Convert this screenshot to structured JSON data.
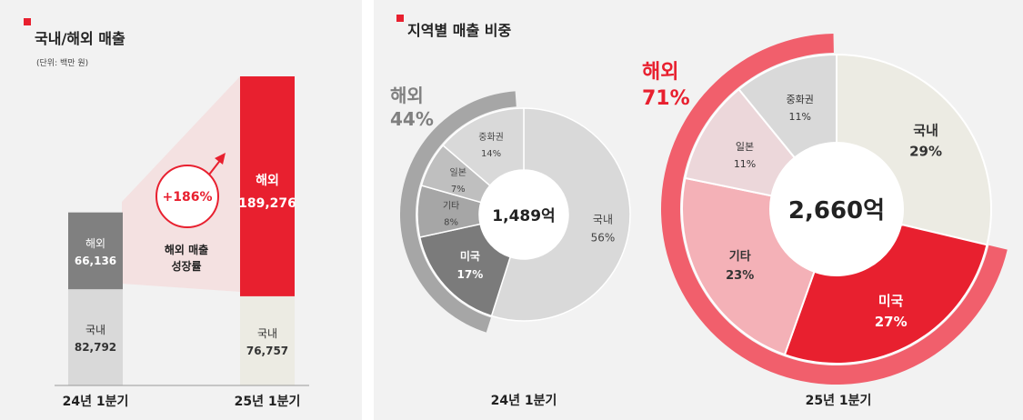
{
  "left_panel": {
    "title": "국내/해외 매출",
    "unit": "(단위: 백만 원)",
    "growth_badge": "+186%",
    "growth_label_line1": "해외 매출",
    "growth_label_line2": "성장률"
  },
  "right_panel": {
    "title": "지역별 매출 비중",
    "left_overseas_title": "해외",
    "left_overseas_value": "44%",
    "right_overseas_title": "해외",
    "right_overseas_value": "71%",
    "left_total": "1,489억",
    "right_total": "2,660억",
    "left_period": "24년 1분기",
    "right_period": "25년 1분기"
  },
  "colors": {
    "accent_red": "#e8202f",
    "light_red": "#f15f6c",
    "gray_dark": "#7b7b7b",
    "gray_mid": "#a6a6a6",
    "gray_light": "#d9d9d9",
    "beige": "#ecebe3"
  },
  "chart_data": [
    {
      "type": "bar",
      "categories": [
        "24년 1분기",
        "25년 1분기"
      ],
      "series": [
        {
          "name": "국내",
          "values": [
            82792,
            76757
          ],
          "labels": [
            "82,792",
            "76,757"
          ]
        },
        {
          "name": "해외",
          "values": [
            66136,
            189276
          ],
          "labels": [
            "66,136",
            "189,276"
          ]
        }
      ],
      "stacked": true,
      "ymax": 266033
    },
    {
      "type": "pie",
      "title": "24년 1분기",
      "total_label": "1,489억",
      "slices": [
        {
          "name": "국내",
          "value": 56,
          "label": "56%",
          "color": "#d9d9d9"
        },
        {
          "name": "미국",
          "value": 17,
          "label": "17%",
          "color": "#7b7b7b"
        },
        {
          "name": "기타",
          "value": 8,
          "label": "8%",
          "color": "#a6a6a6"
        },
        {
          "name": "일본",
          "value": 7,
          "label": "7%",
          "color": "#bfbfbf"
        },
        {
          "name": "중화권",
          "value": 14,
          "label": "14%",
          "color": "#d9d9d9"
        }
      ],
      "outer_ring": {
        "name": "해외",
        "value": 44,
        "label": "44%"
      }
    },
    {
      "type": "pie",
      "title": "25년 1분기",
      "total_label": "2,660억",
      "slices": [
        {
          "name": "국내",
          "value": 29,
          "label": "29%",
          "color": "#ecebe3"
        },
        {
          "name": "미국",
          "value": 27,
          "label": "27%",
          "color": "#e8202f"
        },
        {
          "name": "기타",
          "value": 23,
          "label": "23%",
          "color": "#f4b1b7"
        },
        {
          "name": "일본",
          "value": 11,
          "label": "11%",
          "color": "#ecd7da"
        },
        {
          "name": "중화권",
          "value": 11,
          "label": "11%",
          "color": "#d9d9d9"
        }
      ],
      "outer_ring": {
        "name": "해외",
        "value": 71,
        "label": "71%"
      }
    }
  ]
}
